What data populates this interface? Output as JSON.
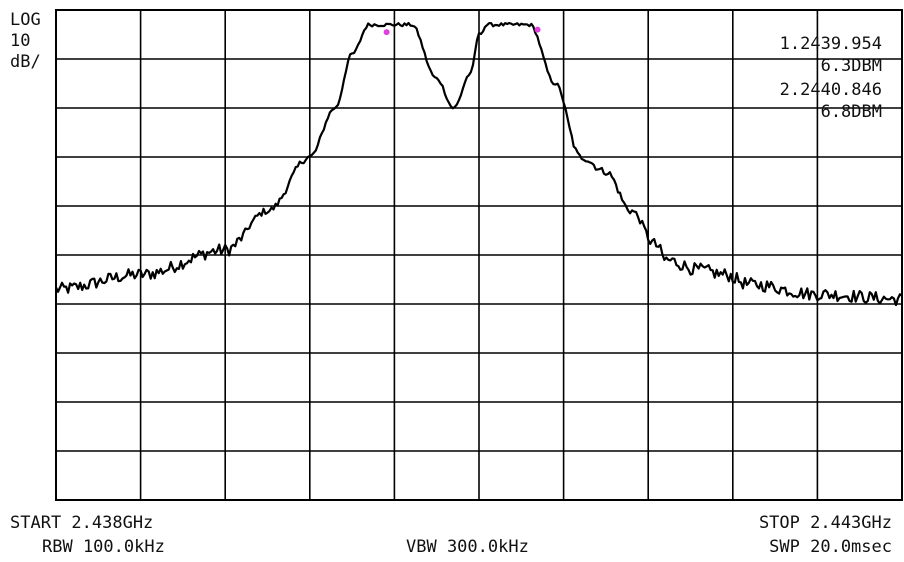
{
  "scale": {
    "line1": "LOG",
    "line2": "10",
    "line3": "dB/"
  },
  "markers": [
    {
      "freq_label": "1.2439.954",
      "level_label": "6.3DBM",
      "x": 2.439954,
      "y": 6.3,
      "color": "#e040e0"
    },
    {
      "freq_label": "2.2440.846",
      "level_label": "6.8DBM",
      "x": 2.440846,
      "y": 6.8,
      "color": "#e040e0"
    }
  ],
  "footer": {
    "start": "START 2.438GHz",
    "stop": "STOP 2.443GHz",
    "rbw": "RBW 100.0kHz",
    "vbw": "VBW 300.0kHz",
    "swp": "SWP 20.0msec"
  },
  "chart_data": {
    "type": "line",
    "title": "",
    "xlabel": "",
    "ylabel": "",
    "xlim": [
      2.438,
      2.443
    ],
    "ylim": [
      -90,
      10
    ],
    "grid": true,
    "x_divisions": 10,
    "y_divisions": 10,
    "trace_color": "#000000",
    "series": [
      {
        "x": [
          2.438,
          2.4385,
          2.439,
          2.43925,
          2.4395,
          2.43965,
          2.43975,
          2.43985,
          2.4399,
          2.44,
          2.4401,
          2.44025,
          2.44035,
          2.44045,
          2.4405,
          2.44055,
          2.44065,
          2.4408,
          2.44095,
          2.4411,
          2.44125,
          2.4414,
          2.44155,
          2.4416,
          2.4418,
          2.44195,
          2.4421,
          2.4425,
          2.443
        ],
        "y": [
          -47,
          -44,
          -39,
          -31,
          -20,
          -10,
          1,
          7,
          7,
          7,
          7,
          -4,
          -10,
          -3,
          5,
          7,
          7,
          7,
          -5,
          -20,
          -23,
          -31,
          -38,
          -41,
          -43,
          -44,
          -46,
          -48,
          -49
        ]
      }
    ],
    "marker_points": [
      {
        "x": 2.439954,
        "y": 6.3
      },
      {
        "x": 2.440846,
        "y": 6.8
      }
    ]
  }
}
